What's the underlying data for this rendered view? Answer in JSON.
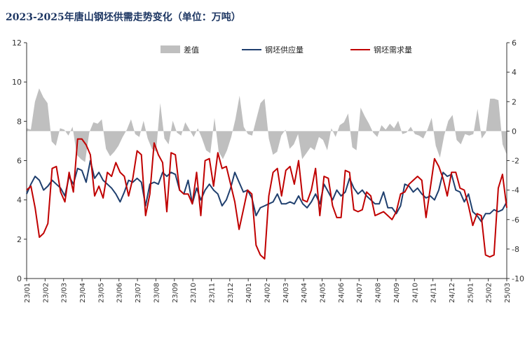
{
  "chart_data": {
    "type": "line",
    "title": "2023-2025年唐山钢坯供需走势变化（单位：万吨）",
    "x_tick_labels": [
      "23/01",
      "23/02",
      "23/03",
      "23/04",
      "23/05",
      "23/06",
      "23/07",
      "23/08",
      "23/09",
      "23/10",
      "23/11",
      "23/12",
      "24/01",
      "24/02",
      "24/03",
      "24/04",
      "24/05",
      "24/06",
      "24/07",
      "24/08",
      "24/09",
      "24/10",
      "24/11",
      "24/12",
      "25/01",
      "25/02",
      "25/03"
    ],
    "left_axis": {
      "ylim": [
        0,
        12
      ],
      "ticks": [
        "0",
        "2",
        "4",
        "6",
        "8",
        "10",
        "12"
      ]
    },
    "right_axis": {
      "ylim": [
        -10,
        6
      ],
      "ticks": [
        "-10",
        "-8",
        "-6",
        "-4",
        "-2",
        "0",
        "2",
        "4",
        "6"
      ]
    },
    "legend": {
      "position": "top"
    },
    "series": [
      {
        "name": "差值",
        "kind": "area",
        "axis": "right",
        "color": "#bfbfbf",
        "values": [
          0.2,
          0.1,
          2,
          2.9,
          2.3,
          1.9,
          -0.7,
          -1,
          0.2,
          0.1,
          -0.3,
          0.3,
          -1.6,
          -1.9,
          -2.1,
          -0.1,
          0.6,
          0.5,
          0.8,
          -1.2,
          -1.7,
          -1.4,
          -1,
          -0.4,
          0.1,
          0.8,
          -0.2,
          -0.4,
          0.7,
          -0.5,
          -1.2,
          -1.4,
          1.9,
          -0.5,
          -0.9,
          0.7,
          -0.1,
          -0.3,
          0.6,
          0.1,
          -0.4,
          0.2,
          -0.5,
          -1.3,
          -1.5,
          0.9,
          -1.4,
          -1.9,
          -1.3,
          -0.4,
          0.8,
          2.4,
          0.3,
          -0.2,
          -0.3,
          0.8,
          1.9,
          2.2,
          -0.5,
          -1.6,
          -1.4,
          -0.3,
          0.1,
          -1.2,
          -0.9,
          -0.2,
          -1.9,
          -1.5,
          -1.1,
          -1.3,
          -0.4,
          -0.6,
          -1.3,
          0.2,
          -0.4,
          0.4,
          0.6,
          1.2,
          -1.1,
          -1.3,
          1.6,
          1,
          0.5,
          -0.1,
          -0.4,
          0.4,
          0.1,
          0.5,
          0.2,
          0.7,
          -0.2,
          -0.1,
          0.3,
          -0.2,
          -0.3,
          -0.5,
          0.1,
          0.9,
          -1,
          -1.8,
          -0.3,
          0.7,
          1.1,
          -0.6,
          -0.9,
          -0.2,
          -0.3,
          -0.2,
          1.5,
          -0.5,
          -0.1,
          2.2,
          2.2,
          2.1,
          -0.9,
          -1.6
        ]
      },
      {
        "name": "钢坯供应量",
        "kind": "line",
        "axis": "left",
        "color": "#1f3f6e",
        "values": [
          4.3,
          4.8,
          5.2,
          5,
          4.5,
          4.7,
          5,
          4.8,
          4.6,
          4.2,
          5.2,
          4.8,
          5.6,
          5.5,
          4.9,
          6,
          5.1,
          5.4,
          5,
          4.8,
          4.6,
          4.3,
          3.9,
          4.4,
          5,
          4.9,
          5.1,
          4.9,
          3.7,
          4.8,
          4.9,
          4.8,
          5.4,
          5.2,
          5.4,
          5.3,
          4.5,
          4.3,
          5,
          3.8,
          4.6,
          4,
          4.5,
          4.8,
          4.5,
          4.3,
          3.7,
          4,
          4.6,
          5.4,
          4.9,
          4.4,
          4.5,
          4.1,
          3.2,
          3.6,
          3.7,
          3.8,
          3.9,
          4.3,
          3.8,
          3.8,
          3.9,
          3.8,
          4.2,
          3.8,
          3.6,
          3.9,
          4.3,
          3.8,
          4.8,
          4.4,
          4,
          4.5,
          4.2,
          4.4,
          5.1,
          4.6,
          4.3,
          4.5,
          4.2,
          4,
          3.8,
          3.8,
          4.4,
          3.6,
          3.6,
          3.3,
          3.7,
          4.8,
          4.7,
          4.4,
          4.6,
          4.3,
          4.1,
          4.2,
          4,
          4.5,
          5.4,
          5.2,
          5.3,
          4.5,
          4.4,
          3.9,
          4.3,
          3.4,
          3.2,
          2.9,
          3.3,
          3.3,
          3.5,
          3.4,
          3.5,
          3.9
        ]
      },
      {
        "name": "钢坯需求量",
        "kind": "line",
        "axis": "left",
        "color": "#c00000",
        "values": [
          4.5,
          4.7,
          3.6,
          2.1,
          2.3,
          2.8,
          5.6,
          5.7,
          4.4,
          3.9,
          5.4,
          4.4,
          7.1,
          7.1,
          6.8,
          6.3,
          4.2,
          4.7,
          4.1,
          5.4,
          5.2,
          5.9,
          5.4,
          5.2,
          4.2,
          5.1,
          6.5,
          6.3,
          3.2,
          4.3,
          6.9,
          6.3,
          5.9,
          3.4,
          6.4,
          6.3,
          4.5,
          4.3,
          4.3,
          3.8,
          5.4,
          3.2,
          6,
          6.1,
          4.7,
          6.4,
          5.6,
          5.7,
          4.8,
          3.9,
          2.5,
          3.5,
          4.5,
          4.3,
          1.7,
          1.2,
          1,
          4.2,
          5.4,
          5.6,
          4.2,
          5.5,
          5.7,
          4.8,
          6,
          4,
          3.9,
          4.5,
          5.6,
          3.2,
          5.2,
          5.1,
          3.7,
          3.1,
          3.1,
          5.5,
          5.4,
          3.5,
          3.4,
          3.5,
          4.4,
          4.2,
          3.2,
          3.3,
          3.4,
          3.2,
          3,
          3.4,
          4.3,
          4.4,
          4.8,
          5,
          5.2,
          5,
          3.1,
          4.6,
          6.1,
          5.7,
          5.1,
          4.2,
          5.4,
          5.4,
          4.6,
          4.5,
          3.7,
          2.7,
          3.3,
          3.2,
          1.2,
          1.1,
          1.2,
          4.6,
          5.3,
          3.6
        ]
      }
    ]
  }
}
